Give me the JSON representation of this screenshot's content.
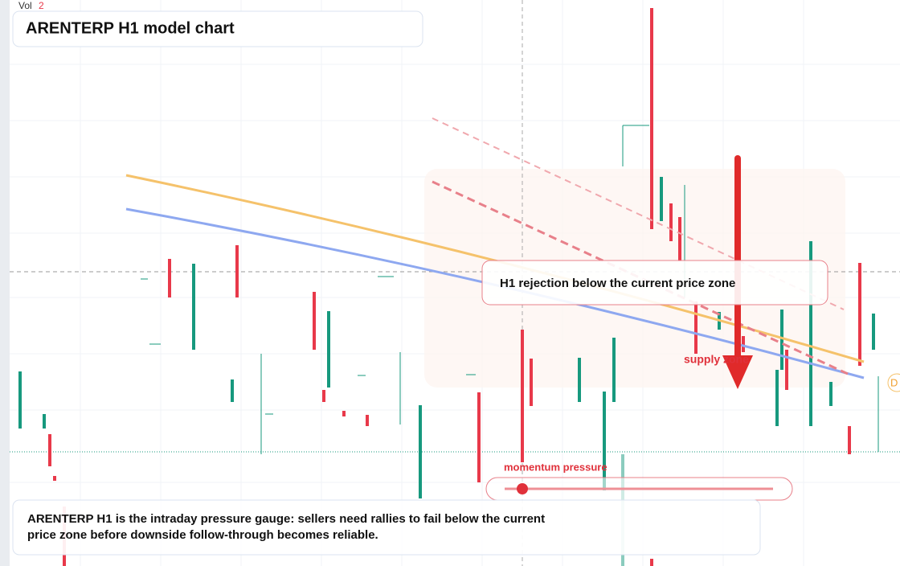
{
  "volume": {
    "label": "Vol",
    "value": "2"
  },
  "title": "ARENTERP H1 model chart",
  "callout": "H1 rejection below the current price zone",
  "zone_label": "supply zone",
  "gauge_label": "momentum pressure",
  "note": "ARENTERP H1 is the intraday pressure gauge: sellers need rallies to fail below the current price zone before downside follow-through becomes reliable.",
  "edge_badge": "D"
}
